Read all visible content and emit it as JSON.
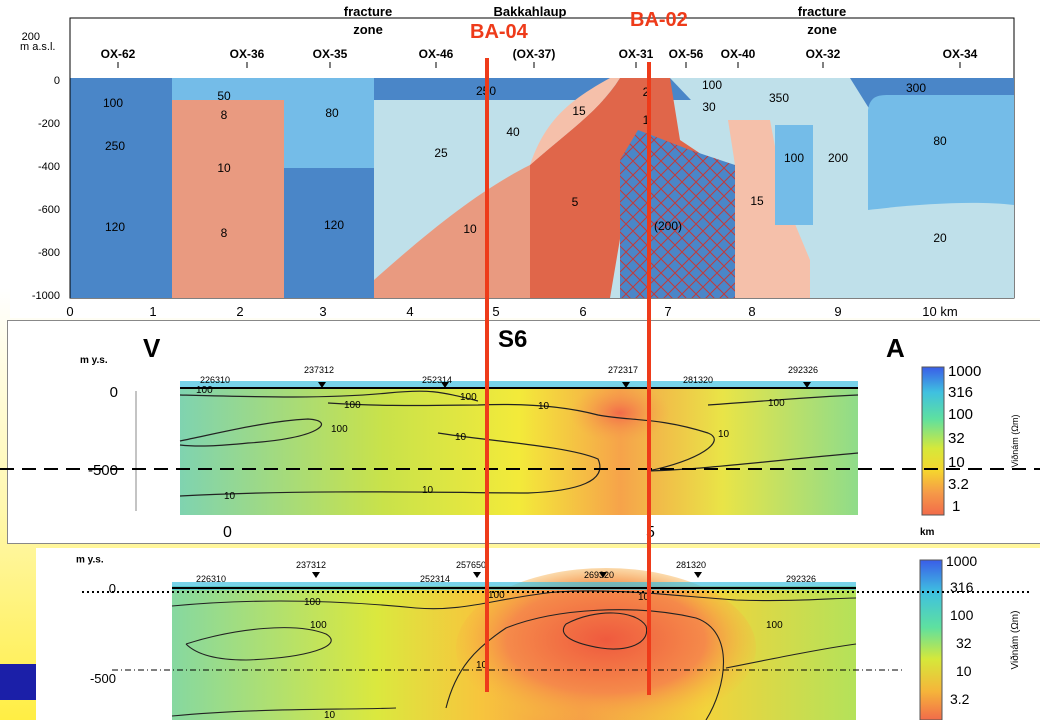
{
  "top_section": {
    "y_axis_label": "m a.s.l.",
    "y_ticks": [
      "200",
      "0",
      "-200",
      "-400",
      "-600",
      "-800",
      "-1000"
    ],
    "x_ticks": [
      "0",
      "1",
      "2",
      "3",
      "4",
      "5",
      "6",
      "7",
      "8",
      "9",
      "10 km"
    ],
    "stations": [
      "OX-62",
      "OX-36",
      "OX-35",
      "OX-46",
      "(OX-37)",
      "OX-31",
      "OX-56",
      "OX-40",
      "OX-32",
      "OX-34"
    ],
    "annotations": {
      "fracture_zone_left": [
        "fracture",
        "zone"
      ],
      "bakkahlaup": "Bakkahlaup",
      "fracture_zone_right": [
        "fracture",
        "zone"
      ]
    },
    "wells": {
      "ba04": "BA-04",
      "ba02": "BA-02"
    },
    "resistivity_labels": [
      "100",
      "250",
      "120",
      "50",
      "8",
      "10",
      "8",
      "80",
      "120",
      "250",
      "25",
      "10",
      "40",
      "15",
      "5",
      "2",
      "1",
      "(200)",
      "100",
      "30",
      "350",
      "100",
      "200",
      "15",
      "300",
      "80",
      "20"
    ]
  },
  "middle_section": {
    "title": "S6",
    "left_letter": "V",
    "right_letter": "A",
    "y_axis_label": "m y.s.",
    "y_ticks": [
      "0",
      "-500"
    ],
    "x_ticks": [
      "0",
      "5"
    ],
    "x_unit": "km",
    "stations": [
      "226310",
      "237312",
      "252314",
      "272317",
      "281320",
      "292326"
    ],
    "contour_labels": [
      "100",
      "100",
      "100",
      "100",
      "100",
      "10",
      "10",
      "10",
      "10",
      "10"
    ],
    "colorbar": {
      "ticks": [
        "1000",
        "316",
        "100",
        "32",
        "10",
        "3.2",
        "1"
      ],
      "label": "Viðnám (Ωm)"
    }
  },
  "bottom_section": {
    "y_axis_label": "m y.s.",
    "y_ticks": [
      "0",
      "-500"
    ],
    "stations": [
      "226310",
      "237312",
      "252314",
      "257650",
      "269320",
      "281320",
      "292326"
    ],
    "contour_labels": [
      "100",
      "100",
      "100",
      "10",
      "10",
      "10",
      "100"
    ],
    "colorbar": {
      "ticks": [
        "1000",
        "316",
        "100",
        "32",
        "10",
        "3.2"
      ],
      "label": "Viðnám (Ωm)"
    }
  },
  "colors": {
    "dark_blue": "#4a86c8",
    "mid_blue": "#74bce8",
    "light_blue": "#bfe0ea",
    "salmon": "#e99a80",
    "orange_red": "#e0664a",
    "light_salmon": "#f5c0aa",
    "well_line": "#ee3b1a"
  }
}
